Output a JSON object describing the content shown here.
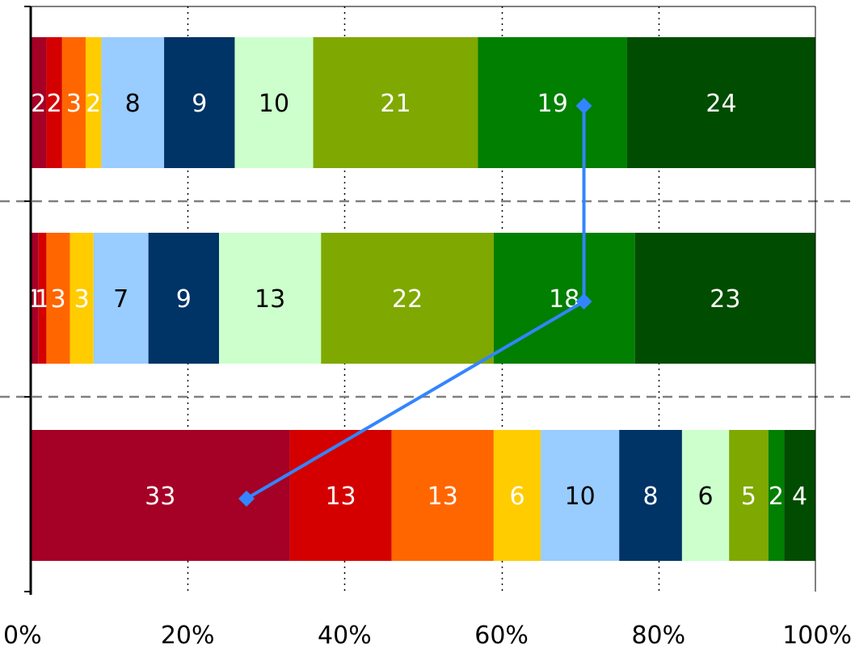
{
  "chart_data": {
    "type": "bar",
    "orientation": "horizontal",
    "stacked": "percent",
    "xlim": [
      0,
      100
    ],
    "x_ticks": [
      "0%",
      "20%",
      "40%",
      "60%",
      "80%",
      "100%"
    ],
    "grid": "vertical dotted gridlines at x ticks",
    "legend": "none",
    "segment_colors": [
      "#a50026",
      "#d40000",
      "#ff6600",
      "#ffcc00",
      "#99ccff",
      "#003366",
      "#ccffcc",
      "#7fa800",
      "#007f00",
      "#004c00"
    ],
    "segment_text_colors": [
      "#ffffff",
      "#ffffff",
      "#ffffff",
      "#ffffff",
      "#000000",
      "#ffffff",
      "#000000",
      "#ffffff",
      "#ffffff",
      "#ffffff"
    ],
    "bars": [
      {
        "values": [
          2,
          2,
          3,
          2,
          8,
          9,
          10,
          21,
          19,
          24
        ]
      },
      {
        "values": [
          1,
          1,
          3,
          3,
          7,
          9,
          13,
          22,
          18,
          23
        ]
      },
      {
        "values": [
          33,
          13,
          13,
          6,
          10,
          8,
          6,
          5,
          2,
          4
        ]
      }
    ],
    "overlay_line": {
      "color": "#3385ff",
      "marker": "diamond",
      "x": [
        70.5,
        70.5,
        27.5
      ]
    }
  }
}
